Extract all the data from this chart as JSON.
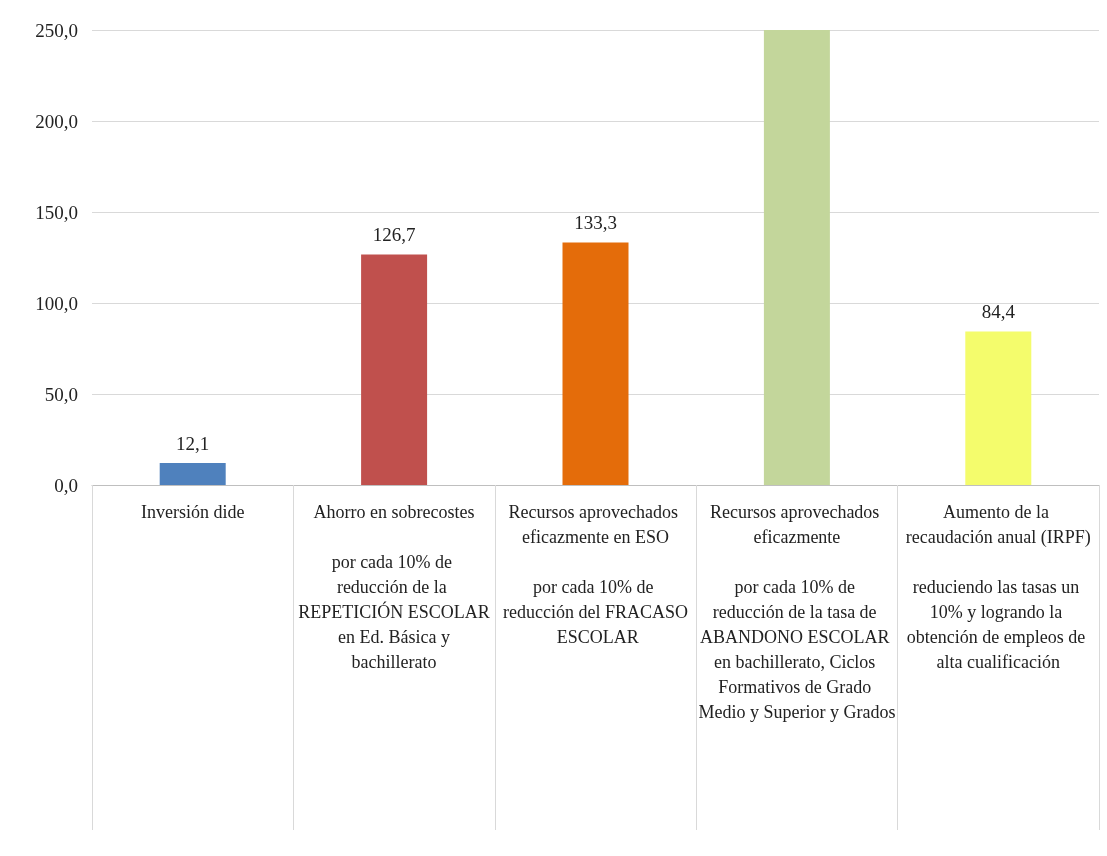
{
  "chart_data": {
    "type": "bar",
    "categories": [
      "Inversión dide",
      "Ahorro en sobrecostes\n\npor cada 10% de reducción de la REPETICIÓN ESCOLAR en Ed. Básica y bachillerato",
      "Recursos aprovechados eficazmente en ESO\n\npor cada 10% de reducción del FRACASO ESCOLAR",
      "Recursos aprovechados eficazmente\n\npor cada 10% de reducción de la tasa de ABANDONO ESCOLAR en bachillerato, Ciclos Formativos de Grado Medio y Superior y Grados",
      "Aumento de la recaudación anual (IRPF)\n\nreduciendo las tasas un 10% y logrando la obtención de empleos de alta cualificación"
    ],
    "values": [
      12.1,
      126.7,
      133.3,
      250,
      84.4
    ],
    "colors": [
      "#4f81bd",
      "#c0504d",
      "#e46c0a",
      "#c3d69b",
      "#f4fc6c"
    ],
    "value_labels": [
      "12,1",
      "126,7",
      "133,3",
      null,
      "84,4"
    ],
    "ylim": [
      0,
      250
    ],
    "yticks": [
      {
        "value": 0,
        "label": "0,0"
      },
      {
        "value": 50,
        "label": "50,0"
      },
      {
        "value": 100,
        "label": "100,0"
      },
      {
        "value": 150,
        "label": "150,0"
      },
      {
        "value": 200,
        "label": "200,0"
      },
      {
        "value": 250,
        "label": "250,0"
      }
    ],
    "grid": true
  }
}
